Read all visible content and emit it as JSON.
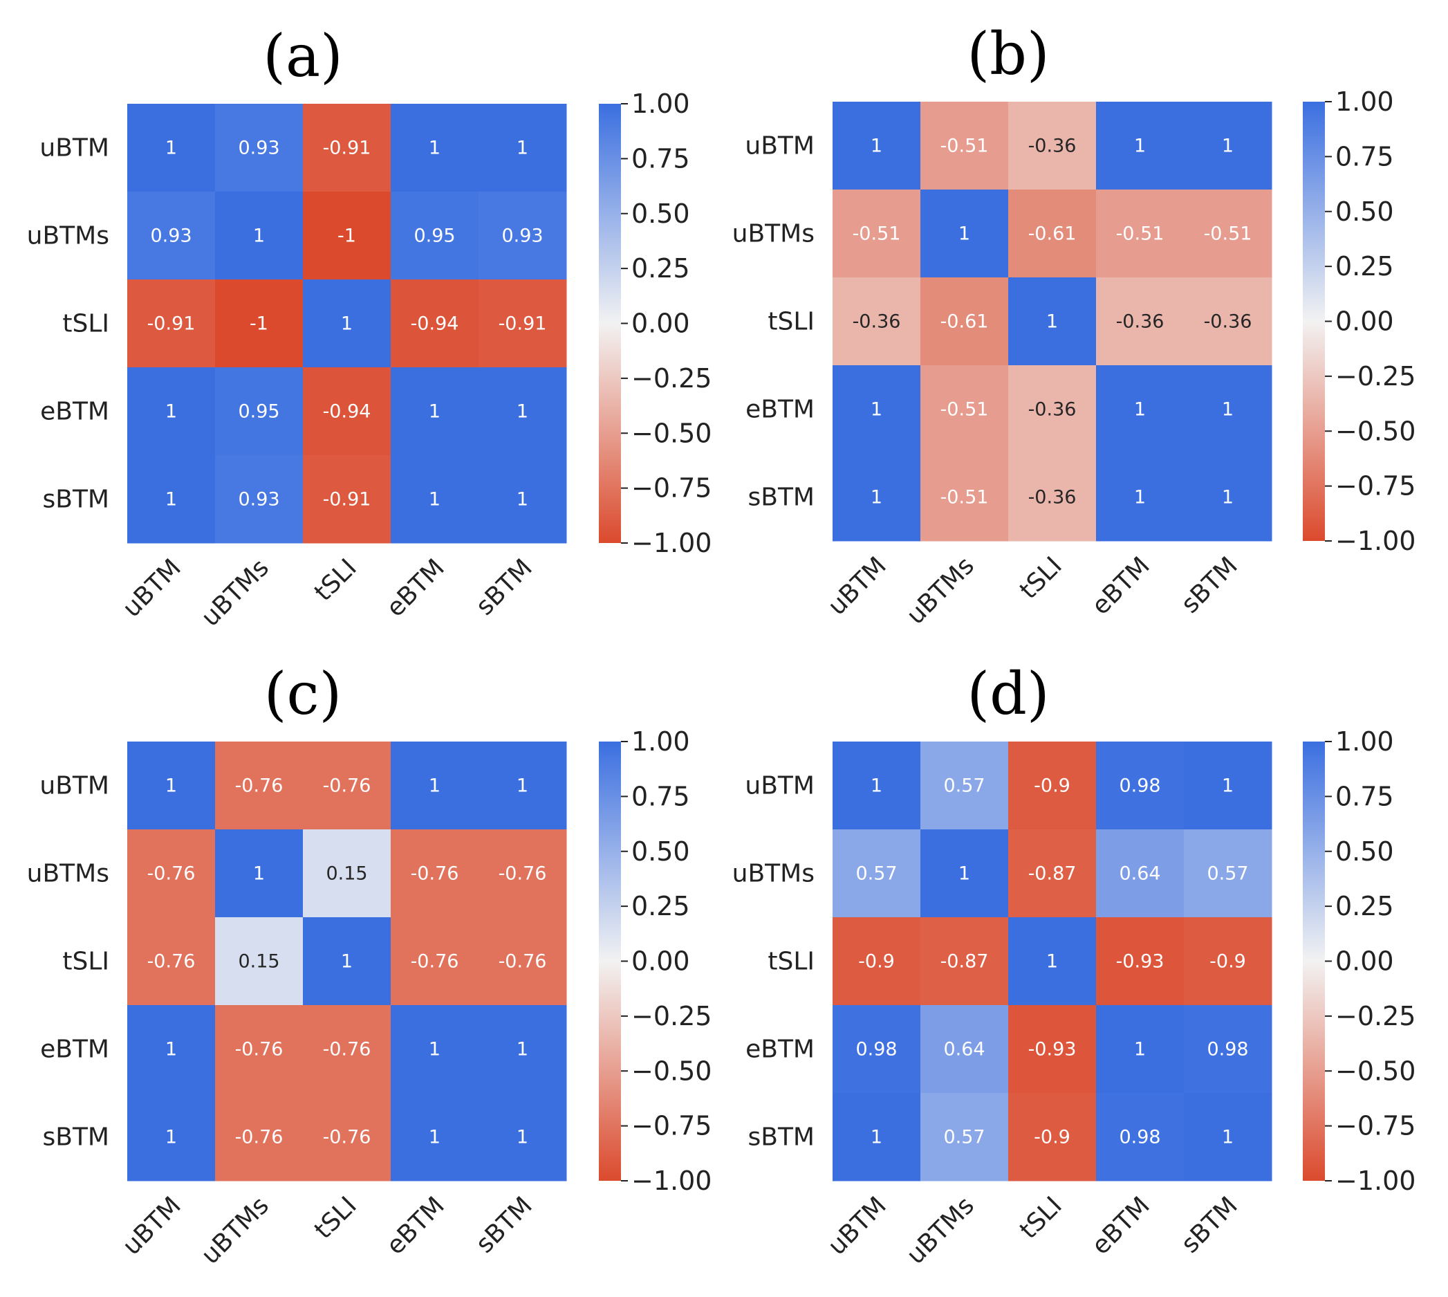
{
  "figure": {
    "colormap": {
      "negative": "#db4a2d",
      "neutral": "#f2f2f2",
      "positive": "#3b6fe0"
    },
    "colorbar_ticks": [
      "1.00",
      "0.75",
      "0.50",
      "0.25",
      "0.00",
      "−0.25",
      "−0.50",
      "−0.75",
      "−1.00"
    ]
  },
  "chart_data": [
    {
      "type": "heatmap",
      "title": "(a)",
      "rows": [
        "uBTM",
        "uBTMs",
        "tSLI",
        "eBTM",
        "sBTM"
      ],
      "cols": [
        "uBTM",
        "uBTMs",
        "tSLI",
        "eBTM",
        "sBTM"
      ],
      "values": [
        [
          1,
          0.93,
          -0.91,
          1,
          1
        ],
        [
          0.93,
          1,
          -1,
          0.95,
          0.93
        ],
        [
          -0.91,
          -1,
          1,
          -0.94,
          -0.91
        ],
        [
          1,
          0.95,
          -0.94,
          1,
          1
        ],
        [
          1,
          0.93,
          -0.91,
          1,
          1
        ]
      ],
      "labels": [
        [
          "1",
          "0.93",
          "-0.91",
          "1",
          "1"
        ],
        [
          "0.93",
          "1",
          "-1",
          "0.95",
          "0.93"
        ],
        [
          "-0.91",
          "-1",
          "1",
          "-0.94",
          "-0.91"
        ],
        [
          "1",
          "0.95",
          "-0.94",
          "1",
          "1"
        ],
        [
          "1",
          "0.93",
          "-0.91",
          "1",
          "1"
        ]
      ],
      "vmin": -1,
      "vmax": 1
    },
    {
      "type": "heatmap",
      "title": "(b)",
      "rows": [
        "uBTM",
        "uBTMs",
        "tSLI",
        "eBTM",
        "sBTM"
      ],
      "cols": [
        "uBTM",
        "uBTMs",
        "tSLI",
        "eBTM",
        "sBTM"
      ],
      "values": [
        [
          1,
          -0.51,
          -0.36,
          1,
          1
        ],
        [
          -0.51,
          1,
          -0.61,
          -0.51,
          -0.51
        ],
        [
          -0.36,
          -0.61,
          1,
          -0.36,
          -0.36
        ],
        [
          1,
          -0.51,
          -0.36,
          1,
          1
        ],
        [
          1,
          -0.51,
          -0.36,
          1,
          1
        ]
      ],
      "labels": [
        [
          "1",
          "-0.51",
          "-0.36",
          "1",
          "1"
        ],
        [
          "-0.51",
          "1",
          "-0.61",
          "-0.51",
          "-0.51"
        ],
        [
          "-0.36",
          "-0.61",
          "1",
          "-0.36",
          "-0.36"
        ],
        [
          "1",
          "-0.51",
          "-0.36",
          "1",
          "1"
        ],
        [
          "1",
          "-0.51",
          "-0.36",
          "1",
          "1"
        ]
      ],
      "vmin": -1,
      "vmax": 1
    },
    {
      "type": "heatmap",
      "title": "(c)",
      "rows": [
        "uBTM",
        "uBTMs",
        "tSLI",
        "eBTM",
        "sBTM"
      ],
      "cols": [
        "uBTM",
        "uBTMs",
        "tSLI",
        "eBTM",
        "sBTM"
      ],
      "values": [
        [
          1,
          -0.76,
          -0.76,
          1,
          1
        ],
        [
          -0.76,
          1,
          0.15,
          -0.76,
          -0.76
        ],
        [
          -0.76,
          0.15,
          1,
          -0.76,
          -0.76
        ],
        [
          1,
          -0.76,
          -0.76,
          1,
          1
        ],
        [
          1,
          -0.76,
          -0.76,
          1,
          1
        ]
      ],
      "labels": [
        [
          "1",
          "-0.76",
          "-0.76",
          "1",
          "1"
        ],
        [
          "-0.76",
          "1",
          "0.15",
          "-0.76",
          "-0.76"
        ],
        [
          "-0.76",
          "0.15",
          "1",
          "-0.76",
          "-0.76"
        ],
        [
          "1",
          "-0.76",
          "-0.76",
          "1",
          "1"
        ],
        [
          "1",
          "-0.76",
          "-0.76",
          "1",
          "1"
        ]
      ],
      "vmin": -1,
      "vmax": 1
    },
    {
      "type": "heatmap",
      "title": "(d)",
      "rows": [
        "uBTM",
        "uBTMs",
        "tSLI",
        "eBTM",
        "sBTM"
      ],
      "cols": [
        "uBTM",
        "uBTMs",
        "tSLI",
        "eBTM",
        "sBTM"
      ],
      "values": [
        [
          1,
          0.57,
          -0.9,
          0.98,
          1
        ],
        [
          0.57,
          1,
          -0.87,
          0.64,
          0.57
        ],
        [
          -0.9,
          -0.87,
          1,
          -0.93,
          -0.9
        ],
        [
          0.98,
          0.64,
          -0.93,
          1,
          0.98
        ],
        [
          1,
          0.57,
          -0.9,
          0.98,
          1
        ]
      ],
      "labels": [
        [
          "1",
          "0.57",
          "-0.9",
          "0.98",
          "1"
        ],
        [
          "0.57",
          "1",
          "-0.87",
          "0.64",
          "0.57"
        ],
        [
          "-0.9",
          "-0.87",
          "1",
          "-0.93",
          "-0.9"
        ],
        [
          "0.98",
          "0.64",
          "-0.93",
          "1",
          "0.98"
        ],
        [
          "1",
          "0.57",
          "-0.9",
          "0.98",
          "1"
        ]
      ],
      "vmin": -1,
      "vmax": 1
    }
  ]
}
